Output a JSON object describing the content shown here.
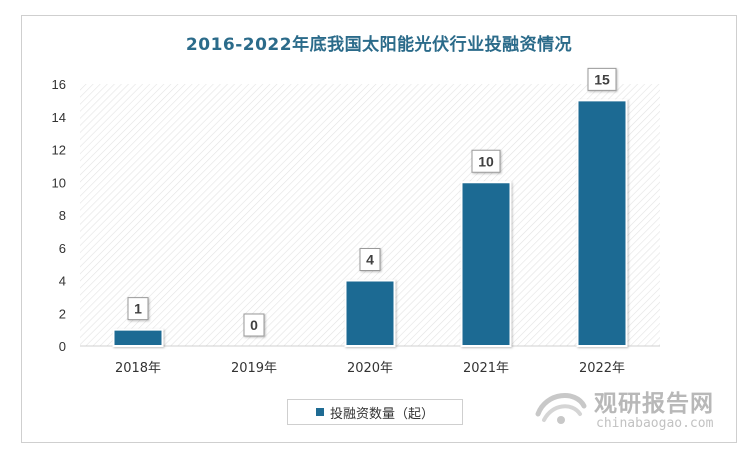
{
  "chart_data": {
    "type": "bar",
    "title": "2016-2022年底我国太阳能光伏行业投融资情况",
    "categories": [
      "2018年",
      "2019年",
      "2020年",
      "2021年",
      "2022年"
    ],
    "series": [
      {
        "name": "投融资数量（起）",
        "values": [
          1,
          0,
          4,
          10,
          15
        ],
        "color": "#1f6b93"
      }
    ],
    "ylim": [
      0,
      16
    ],
    "yticks": [
      0,
      2,
      4,
      6,
      8,
      10,
      12,
      14,
      16
    ],
    "data_labels": true,
    "grid": false,
    "legend_position": "bottom"
  },
  "watermark": {
    "cn": "观研报告网",
    "en": "chinabaogao.com"
  }
}
